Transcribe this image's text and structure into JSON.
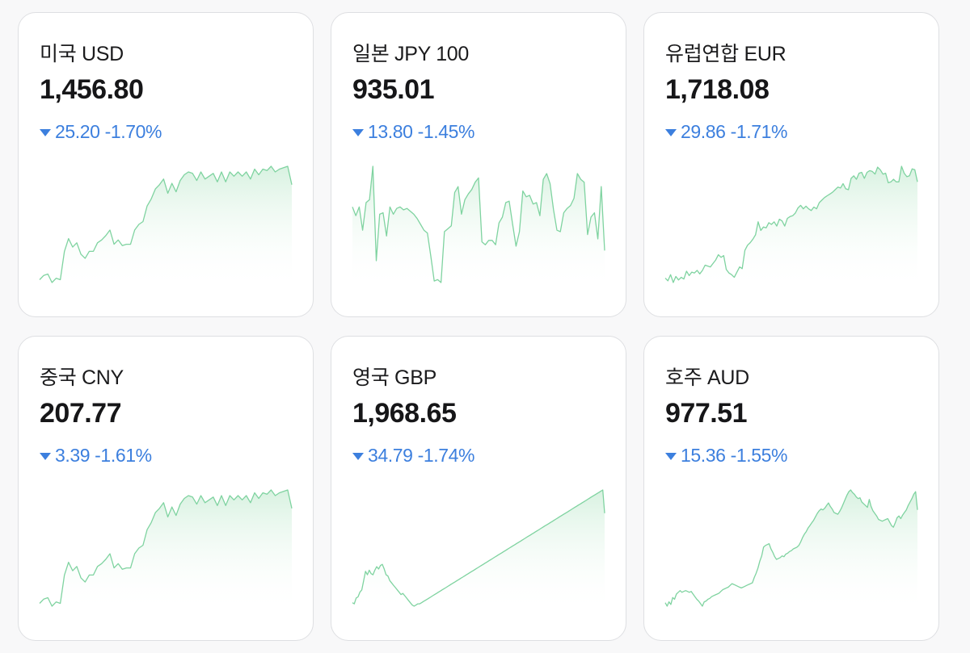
{
  "colors": {
    "accent_down": "#3c7fde",
    "spark_line": "#7fd3a0",
    "spark_fill_top": "#d6f1df",
    "card_border": "#dedfe2"
  },
  "currencies": [
    {
      "name": "미국 USD",
      "rate": "1,456.80",
      "direction": "down",
      "icon": "triangle-down-icon",
      "change": "25.20",
      "percent": "-1.70%",
      "trend": [
        3,
        6,
        7,
        1,
        4,
        3,
        23,
        32,
        26,
        29,
        21,
        18,
        23,
        23,
        29,
        31,
        34,
        38,
        28,
        31,
        27,
        28,
        28,
        38,
        42,
        44,
        55,
        60,
        67,
        70,
        74,
        64,
        71,
        65,
        73,
        77,
        79,
        78,
        73,
        79,
        74,
        76,
        78,
        72,
        79,
        72,
        79,
        76,
        79,
        76,
        79,
        74,
        81,
        77,
        81,
        80,
        83,
        79,
        81,
        82,
        83,
        70
      ]
    },
    {
      "name": "일본 JPY 100",
      "rate": "935.01",
      "direction": "down",
      "icon": "triangle-down-icon",
      "change": "13.80",
      "percent": "-1.45%",
      "trend": [
        52,
        46,
        52,
        36,
        55,
        57,
        80,
        15,
        47,
        48,
        32,
        52,
        47,
        51,
        52,
        50,
        51,
        49,
        47,
        44,
        40,
        36,
        34,
        18,
        1,
        2,
        0,
        35,
        37,
        39,
        62,
        66,
        47,
        57,
        61,
        64,
        69,
        72,
        28,
        26,
        29,
        29,
        26,
        41,
        45,
        55,
        56,
        40,
        25,
        35,
        63,
        59,
        60,
        54,
        55,
        46,
        71,
        75,
        68,
        50,
        36,
        35,
        48,
        51,
        53,
        58,
        75,
        71,
        69,
        33,
        45,
        48,
        30,
        66,
        22
      ]
    },
    {
      "name": "유럽연합 EUR",
      "rate": "1,718.08",
      "direction": "down",
      "icon": "triangle-down-icon",
      "change": "29.86",
      "percent": "-1.71%",
      "trend": [
        5,
        2,
        9,
        0,
        7,
        3,
        6,
        4,
        13,
        8,
        12,
        11,
        14,
        10,
        14,
        20,
        19,
        18,
        22,
        26,
        32,
        29,
        31,
        15,
        11,
        9,
        6,
        12,
        18,
        16,
        37,
        43,
        46,
        50,
        55,
        70,
        60,
        64,
        63,
        69,
        67,
        70,
        65,
        73,
        71,
        65,
        74,
        76,
        77,
        80,
        86,
        89,
        85,
        88,
        85,
        83,
        87,
        85,
        92,
        95,
        98,
        100,
        102,
        104,
        107,
        110,
        109,
        114,
        108,
        107,
        120,
        123,
        119,
        126,
        127,
        120,
        127,
        129,
        128,
        125,
        133,
        130,
        125,
        126,
        115,
        116,
        119,
        116,
        116,
        134,
        126,
        122,
        123,
        131,
        130,
        116
      ]
    },
    {
      "name": "중국 CNY",
      "rate": "207.77",
      "direction": "down",
      "icon": "triangle-down-icon",
      "change": "3.39",
      "percent": "-1.61%",
      "trend": [
        3,
        6,
        7,
        1,
        4,
        3,
        23,
        32,
        26,
        29,
        21,
        18,
        23,
        23,
        29,
        31,
        34,
        38,
        28,
        31,
        27,
        28,
        28,
        38,
        42,
        44,
        55,
        60,
        67,
        70,
        74,
        64,
        71,
        65,
        73,
        77,
        79,
        78,
        73,
        79,
        74,
        76,
        78,
        72,
        79,
        72,
        79,
        76,
        79,
        76,
        79,
        74,
        81,
        77,
        81,
        80,
        83,
        79,
        81,
        82,
        83,
        70
      ]
    },
    {
      "name": "영국 GBP",
      "rate": "1,968.65",
      "direction": "down",
      "icon": "triangle-down-icon",
      "change": "34.79",
      "percent": "-1.74%",
      "trend": [
        3,
        2,
        7,
        8,
        12,
        14,
        22,
        30,
        27,
        31,
        28,
        27,
        31,
        34,
        32,
        35,
        36,
        32,
        27,
        26,
        22,
        20,
        18,
        16,
        14,
        12,
        10,
        11,
        9,
        7,
        5,
        3,
        1,
        0,
        1,
        2,
        2,
        3,
        4,
        5,
        6,
        7,
        8,
        9,
        10,
        11,
        12,
        13,
        14,
        15,
        16,
        17,
        18,
        19,
        20,
        21,
        22,
        23,
        24,
        25,
        26,
        27,
        28,
        29,
        30,
        31,
        32,
        33,
        34,
        35,
        36,
        37,
        38,
        39,
        40,
        41,
        42,
        43,
        44,
        45,
        46,
        47,
        48,
        49,
        50,
        51,
        52,
        53,
        54,
        55,
        56,
        57,
        58,
        59,
        60,
        61,
        62,
        63,
        64,
        65,
        66,
        67,
        68,
        69,
        70,
        71,
        72,
        73,
        74,
        75,
        76,
        77,
        78,
        79,
        80,
        81,
        82,
        83,
        84,
        85,
        86,
        87,
        88,
        89,
        90,
        91,
        92,
        93,
        94,
        95,
        96,
        97,
        98,
        99,
        100,
        80
      ]
    },
    {
      "name": "호주 AUD",
      "rate": "977.51",
      "direction": "down",
      "icon": "triangle-down-icon",
      "change": "15.36",
      "percent": "-1.55%",
      "trend": [
        4,
        0,
        5,
        2,
        10,
        8,
        14,
        16,
        18,
        16,
        17,
        18,
        17,
        16,
        17,
        14,
        11,
        8,
        6,
        3,
        0,
        5,
        6,
        8,
        9,
        11,
        12,
        13,
        14,
        15,
        17,
        19,
        20,
        21,
        22,
        24,
        26,
        25,
        24,
        23,
        22,
        21,
        22,
        23,
        24,
        25,
        26,
        27,
        33,
        38,
        44,
        52,
        58,
        68,
        70,
        71,
        72,
        66,
        62,
        57,
        54,
        55,
        56,
        58,
        57,
        60,
        61,
        63,
        64,
        66,
        67,
        68,
        70,
        74,
        79,
        83,
        86,
        90,
        93,
        96,
        99,
        103,
        107,
        110,
        112,
        111,
        113,
        116,
        119,
        115,
        112,
        108,
        107,
        106,
        109,
        113,
        118,
        123,
        128,
        132,
        134,
        131,
        129,
        126,
        124,
        125,
        120,
        118,
        116,
        114,
        123,
        115,
        110,
        107,
        104,
        100,
        99,
        98,
        99,
        100,
        101,
        97,
        93,
        91,
        96,
        102,
        104,
        101,
        105,
        108,
        111,
        116,
        120,
        124,
        129,
        132,
        111
      ]
    }
  ]
}
